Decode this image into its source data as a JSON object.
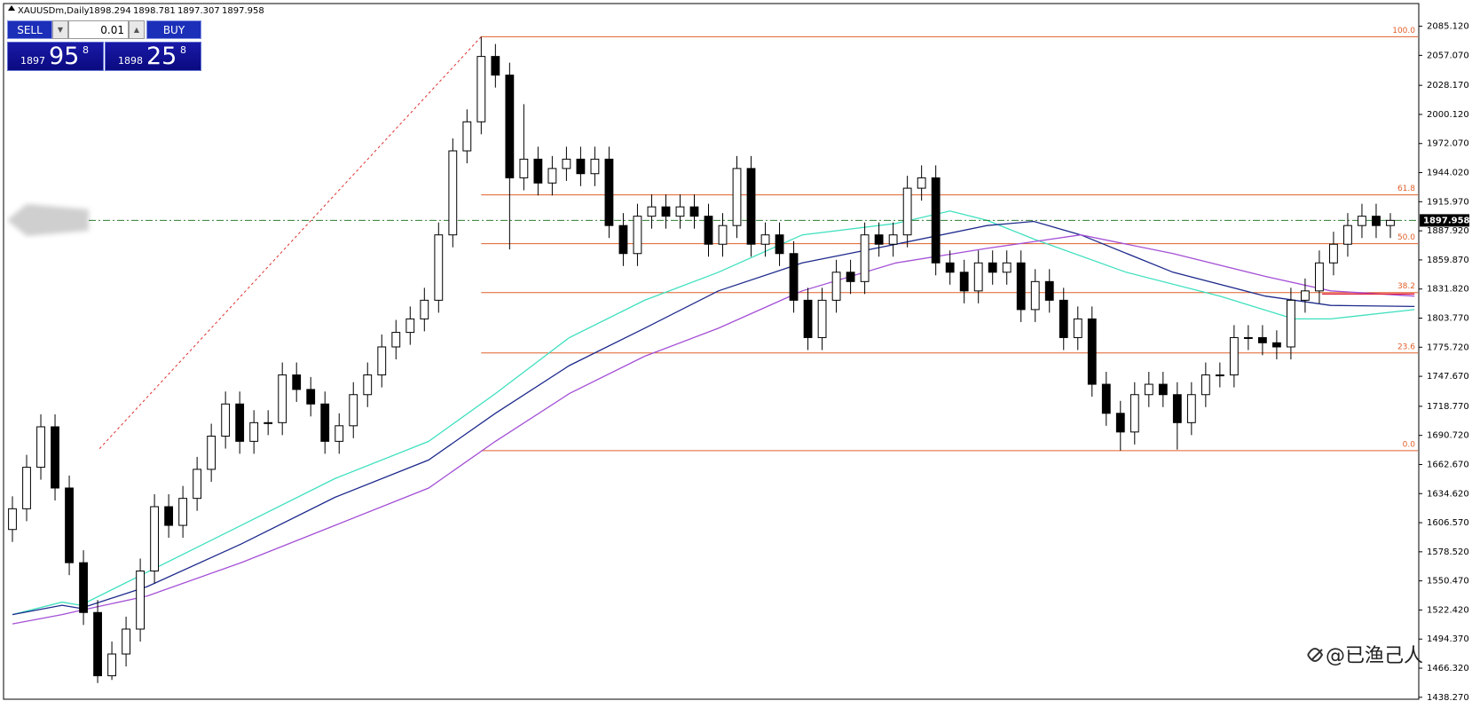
{
  "chart_data": {
    "type": "candlestick",
    "title": "XAUUSDm,Daily",
    "ohlc": [
      1898.294,
      1898.781,
      1897.307,
      1897.958
    ],
    "open": [
      1600,
      1620,
      1660,
      1699,
      1640,
      1568,
      1520,
      1459,
      1480,
      1504,
      1560,
      1622,
      1604,
      1630,
      1658,
      1690,
      1721,
      1685,
      1703,
      1703,
      1749,
      1735,
      1721,
      1685,
      1700,
      1730,
      1749,
      1776,
      1790,
      1803,
      1821,
      1884,
      1965,
      1993,
      2056,
      2038,
      1939,
      1957,
      1934,
      1948,
      1957,
      1943,
      1957,
      1893,
      1866,
      1902,
      1911,
      1902,
      1911,
      1902,
      1875,
      1893,
      1948,
      1875,
      1884,
      1866,
      1821,
      1785,
      1821,
      1848,
      1839,
      1884,
      1875,
      1884,
      1929,
      1939,
      1857,
      1848,
      1830,
      1857,
      1848,
      1857,
      1812,
      1839,
      1821,
      1785,
      1803,
      1740,
      1712,
      1694,
      1730,
      1740,
      1730,
      1703,
      1730,
      1749,
      1749,
      1785,
      1785,
      1780,
      1776,
      1821,
      1830,
      1857,
      1875,
      1893,
      1902,
      1893
    ],
    "high": [
      1632,
      1672,
      1711,
      1711,
      1652,
      1580,
      1532,
      1492,
      1516,
      1572,
      1634,
      1634,
      1642,
      1670,
      1702,
      1733,
      1733,
      1715,
      1715,
      1761,
      1761,
      1747,
      1733,
      1712,
      1742,
      1761,
      1788,
      1802,
      1815,
      1833,
      1896,
      1977,
      2005,
      2075,
      2068,
      2050,
      2010,
      1969,
      1960,
      1969,
      1969,
      1969,
      1969,
      1905,
      1914,
      1923,
      1923,
      1923,
      1923,
      1914,
      1905,
      1960,
      1960,
      1896,
      1896,
      1878,
      1833,
      1833,
      1860,
      1860,
      1896,
      1896,
      1896,
      1941,
      1951,
      1951,
      1869,
      1860,
      1869,
      1869,
      1869,
      1869,
      1851,
      1851,
      1833,
      1815,
      1815,
      1752,
      1724,
      1742,
      1752,
      1752,
      1742,
      1742,
      1761,
      1761,
      1797,
      1797,
      1797,
      1792,
      1833,
      1842,
      1869,
      1887,
      1905,
      1914,
      1914,
      1905
    ],
    "low": [
      1588,
      1608,
      1648,
      1628,
      1556,
      1508,
      1452,
      1455,
      1468,
      1492,
      1548,
      1592,
      1592,
      1618,
      1646,
      1678,
      1673,
      1673,
      1691,
      1691,
      1723,
      1709,
      1673,
      1673,
      1688,
      1718,
      1737,
      1764,
      1778,
      1791,
      1809,
      1872,
      1953,
      1981,
      2026,
      1870,
      1927,
      1922,
      1922,
      1936,
      1931,
      1931,
      1881,
      1854,
      1854,
      1890,
      1890,
      1890,
      1890,
      1863,
      1863,
      1881,
      1863,
      1863,
      1854,
      1809,
      1773,
      1773,
      1809,
      1827,
      1827,
      1863,
      1863,
      1872,
      1917,
      1845,
      1836,
      1818,
      1818,
      1836,
      1836,
      1800,
      1800,
      1809,
      1773,
      1773,
      1728,
      1700,
      1676,
      1682,
      1718,
      1718,
      1677,
      1691,
      1718,
      1737,
      1737,
      1773,
      1768,
      1764,
      1764,
      1809,
      1818,
      1845,
      1863,
      1881,
      1881,
      1881
    ],
    "close": [
      1620,
      1660,
      1699,
      1640,
      1568,
      1520,
      1459,
      1480,
      1504,
      1560,
      1622,
      1604,
      1630,
      1658,
      1690,
      1721,
      1685,
      1703,
      1703,
      1749,
      1735,
      1721,
      1685,
      1700,
      1730,
      1749,
      1776,
      1790,
      1803,
      1821,
      1884,
      1965,
      1993,
      2056,
      2038,
      1939,
      1957,
      1934,
      1948,
      1957,
      1943,
      1957,
      1893,
      1866,
      1902,
      1911,
      1902,
      1911,
      1902,
      1875,
      1893,
      1948,
      1875,
      1884,
      1866,
      1821,
      1785,
      1821,
      1848,
      1839,
      1884,
      1875,
      1884,
      1929,
      1939,
      1857,
      1848,
      1830,
      1857,
      1848,
      1857,
      1812,
      1839,
      1821,
      1785,
      1803,
      1740,
      1712,
      1694,
      1730,
      1740,
      1730,
      1703,
      1730,
      1749,
      1749,
      1785,
      1785,
      1780,
      1776,
      1821,
      1830,
      1857,
      1875,
      1893,
      1902,
      1893,
      1898
    ],
    "series": [
      {
        "color": "#3fe0bf",
        "x": [
          0,
          3.5,
          4.8,
          9.5,
          16.1,
          22.7,
          29.3,
          34,
          39.2,
          44.5,
          49.7,
          55.6,
          62.2,
          66,
          68.6,
          71.9,
          78.4,
          85,
          90.2,
          92.8,
          98.7
        ],
        "values": [
          1518,
          1530,
          1527,
          1559,
          1604,
          1649,
          1685,
          1731,
          1785,
          1821,
          1848,
          1884,
          1895,
          1907,
          1898,
          1880,
          1848,
          1825,
          1803,
          1803,
          1812
        ]
      },
      {
        "color": "#1e2a8c",
        "x": [
          0,
          3.5,
          4.8,
          9.5,
          16.1,
          22.7,
          29.3,
          34,
          39.2,
          44.5,
          49.7,
          55.6,
          62.2,
          68.6,
          71.9,
          75.2,
          81.7,
          88.2,
          92.8,
          98.7
        ],
        "values": [
          1518,
          1527,
          1524,
          1545,
          1586,
          1631,
          1667,
          1712,
          1758,
          1794,
          1830,
          1857,
          1875,
          1893,
          1897,
          1884,
          1848,
          1825,
          1816,
          1815
        ]
      },
      {
        "color": "#a450d6",
        "x": [
          0,
          3.5,
          4.8,
          9.5,
          16.1,
          22.7,
          29.3,
          34,
          39.2,
          44.5,
          49.7,
          55.6,
          62.2,
          68.6,
          75.2,
          81.7,
          88.2,
          92.8,
          98.7
        ],
        "values": [
          1509,
          1518,
          1522,
          1536,
          1568,
          1604,
          1640,
          1685,
          1731,
          1767,
          1794,
          1830,
          1857,
          1871,
          1884,
          1866,
          1844,
          1830,
          1825
        ]
      },
      {
        "color": "#e0203c",
        "x": [
          92.2,
          98.7
        ],
        "values": [
          1827,
          1827
        ]
      }
    ],
    "last_price": 1897.958,
    "fib": {
      "high": 2075,
      "low": 1676,
      "color": "#e0602a",
      "levels": [
        {
          "value": 100,
          "label": "100.0"
        },
        61.8,
        {
          "value": 50,
          "label": "50.0"
        },
        38.2,
        23.6,
        {
          "value": 0,
          "label": "0.0"
        }
      ]
    },
    "ylim": [
      1436.4,
      2107.0
    ],
    "yticks": [
      {
        "value": 2085.12,
        "label": "2085.120"
      },
      {
        "value": 2057.07,
        "label": "2057.070"
      },
      {
        "value": 2028.17,
        "label": "2028.170"
      },
      {
        "value": 2000.12,
        "label": "2000.120"
      },
      {
        "value": 1972.07,
        "label": "1972.070"
      },
      {
        "value": 1944.02,
        "label": "1944.020"
      },
      {
        "value": 1915.97,
        "label": "1915.970"
      },
      {
        "value": 1887.92,
        "label": "1887.920"
      },
      {
        "value": 1859.87,
        "label": "1859.870"
      },
      {
        "value": 1831.82,
        "label": "1831.820"
      },
      {
        "value": 1803.77,
        "label": "1803.770"
      },
      {
        "value": 1775.72,
        "label": "1775.720"
      },
      {
        "value": 1747.67,
        "label": "1747.670"
      },
      {
        "value": 1718.77,
        "label": "1718.770"
      },
      {
        "value": 1690.72,
        "label": "1690.720"
      },
      {
        "value": 1662.67,
        "label": "1662.670"
      },
      {
        "value": 1634.62,
        "label": "1634.620"
      },
      {
        "value": 1606.57,
        "label": "1606.570"
      },
      {
        "value": 1578.52,
        "label": "1578.520"
      },
      {
        "value": 1550.47,
        "label": "1550.470"
      },
      {
        "value": 1522.42,
        "label": "1522.420"
      },
      {
        "value": 1494.37,
        "label": "1494.370"
      },
      {
        "value": 1466.32,
        "label": "1466.320"
      },
      {
        "value": 1438.27,
        "label": "1438.270"
      }
    ],
    "grid": false
  },
  "panel": {
    "sell": "SELL",
    "lot": "0.01",
    "buy": "BUY",
    "bid": {
      "big": "1897",
      "main": "95",
      "sup": "8"
    },
    "ask": {
      "big": "1898",
      "main": "25",
      "sup": "8"
    },
    "watermark": "@已渔己人"
  }
}
